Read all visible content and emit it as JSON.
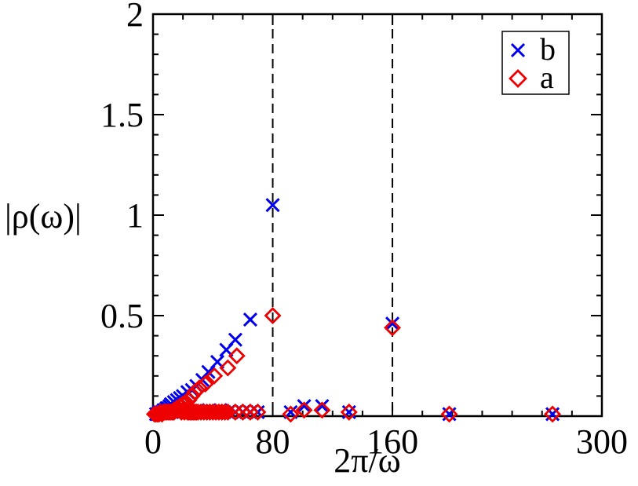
{
  "chart_data": {
    "type": "scatter",
    "title": "",
    "xlabel": "2π/ω",
    "ylabel": "|ρ(ω)|",
    "xlim": [
      0,
      300
    ],
    "ylim": [
      0,
      2
    ],
    "x_ticks": [
      0,
      80,
      160,
      300
    ],
    "y_ticks": [
      0.5,
      1,
      1.5,
      2
    ],
    "y_tick_labels": [
      "0.5",
      "1",
      "1.5",
      "2"
    ],
    "x_tick_labels": [
      "0",
      "80",
      "160",
      "300"
    ],
    "reference_lines_x": [
      80,
      160
    ],
    "legend_position": "top-right",
    "grid": false,
    "series": [
      {
        "name": "b",
        "marker": "x",
        "color": "#0000ee",
        "points": [
          [
            2,
            0.01
          ],
          [
            3,
            0.01
          ],
          [
            4,
            0.02
          ],
          [
            5,
            0.02
          ],
          [
            6,
            0.02
          ],
          [
            7,
            0.03
          ],
          [
            8,
            0.03
          ],
          [
            9,
            0.04
          ],
          [
            10,
            0.04
          ],
          [
            11,
            0.05
          ],
          [
            12,
            0.06
          ],
          [
            14,
            0.07
          ],
          [
            16,
            0.08
          ],
          [
            18,
            0.09
          ],
          [
            20,
            0.1
          ],
          [
            23,
            0.12
          ],
          [
            26,
            0.13
          ],
          [
            29,
            0.15
          ],
          [
            33,
            0.18
          ],
          [
            37,
            0.22
          ],
          [
            43,
            0.27
          ],
          [
            49,
            0.33
          ],
          [
            55,
            0.38
          ],
          [
            65,
            0.48
          ],
          [
            20,
            0.02
          ],
          [
            25,
            0.02
          ],
          [
            30,
            0.03
          ],
          [
            35,
            0.02
          ],
          [
            40,
            0.02
          ],
          [
            45,
            0.03
          ],
          [
            50,
            0.02
          ],
          [
            55,
            0.02
          ],
          [
            60,
            0.02
          ],
          [
            65,
            0.02
          ],
          [
            70,
            0.02
          ],
          [
            80,
            1.05
          ],
          [
            92,
            0.02
          ],
          [
            101,
            0.05
          ],
          [
            113,
            0.05
          ],
          [
            131,
            0.02
          ],
          [
            160,
            0.46
          ],
          [
            198,
            0.01
          ],
          [
            267,
            0.01
          ]
        ]
      },
      {
        "name": "a",
        "marker": "diamond",
        "color": "#ee0000",
        "points": [
          [
            1,
            0.01
          ],
          [
            2,
            0.01
          ],
          [
            3,
            0.01
          ],
          [
            4,
            0.01
          ],
          [
            5,
            0.02
          ],
          [
            6,
            0.01
          ],
          [
            7,
            0.02
          ],
          [
            8,
            0.02
          ],
          [
            9,
            0.02
          ],
          [
            10,
            0.02
          ],
          [
            11,
            0.02
          ],
          [
            12,
            0.02
          ],
          [
            13,
            0.02
          ],
          [
            14,
            0.02
          ],
          [
            15,
            0.03
          ],
          [
            16,
            0.03
          ],
          [
            17,
            0.03
          ],
          [
            18,
            0.03
          ],
          [
            19,
            0.02
          ],
          [
            20,
            0.03
          ],
          [
            21,
            0.02
          ],
          [
            22,
            0.03
          ],
          [
            23,
            0.02
          ],
          [
            24,
            0.02
          ],
          [
            25,
            0.02
          ],
          [
            26,
            0.02
          ],
          [
            27,
            0.02
          ],
          [
            28,
            0.02
          ],
          [
            29,
            0.02
          ],
          [
            30,
            0.02
          ],
          [
            32,
            0.02
          ],
          [
            34,
            0.02
          ],
          [
            36,
            0.02
          ],
          [
            38,
            0.02
          ],
          [
            40,
            0.02
          ],
          [
            42,
            0.02
          ],
          [
            44,
            0.02
          ],
          [
            46,
            0.02
          ],
          [
            48,
            0.02
          ],
          [
            50,
            0.02
          ],
          [
            55,
            0.02
          ],
          [
            60,
            0.02
          ],
          [
            65,
            0.02
          ],
          [
            70,
            0.02
          ],
          [
            14,
            0.03
          ],
          [
            16,
            0.04
          ],
          [
            18,
            0.05
          ],
          [
            20,
            0.06
          ],
          [
            22,
            0.07
          ],
          [
            24,
            0.08
          ],
          [
            26,
            0.1
          ],
          [
            28,
            0.12
          ],
          [
            31,
            0.14
          ],
          [
            35,
            0.16
          ],
          [
            41,
            0.2
          ],
          [
            50,
            0.24
          ],
          [
            56,
            0.3
          ],
          [
            80,
            0.5
          ],
          [
            92,
            0.01
          ],
          [
            101,
            0.03
          ],
          [
            113,
            0.03
          ],
          [
            131,
            0.02
          ],
          [
            160,
            0.44
          ],
          [
            198,
            0.01
          ],
          [
            267,
            0.01
          ]
        ]
      }
    ]
  }
}
